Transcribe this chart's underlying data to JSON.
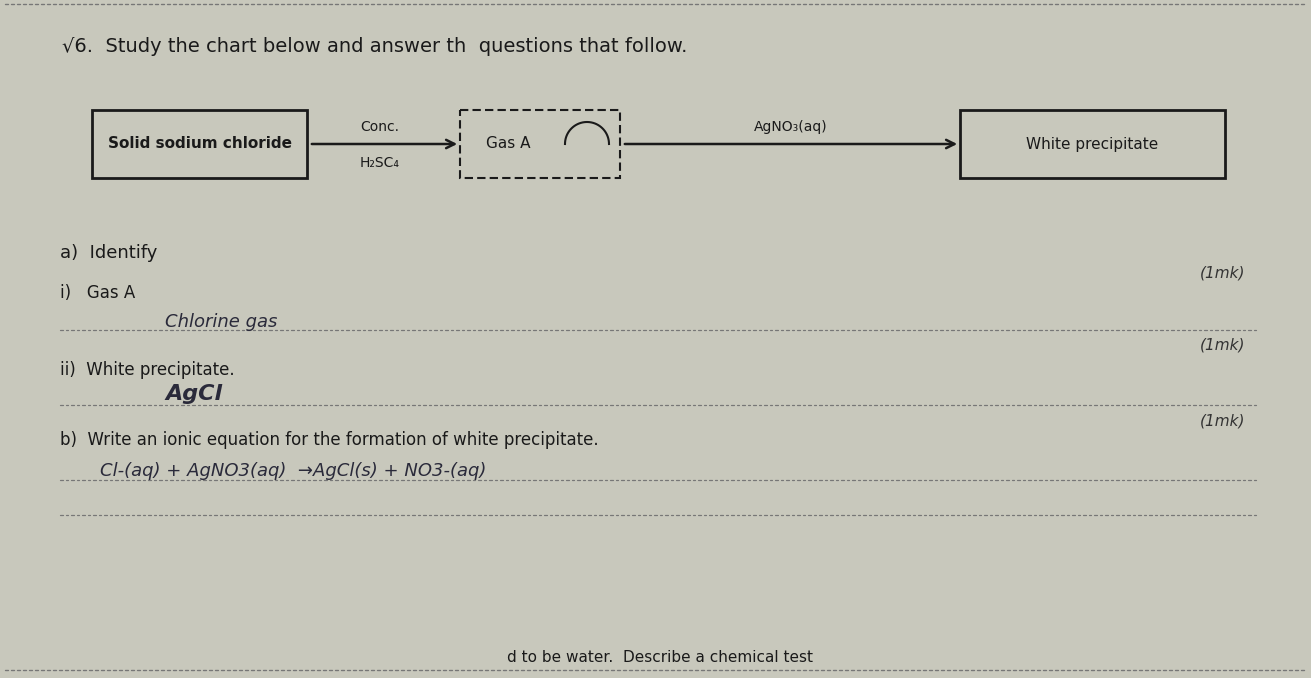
{
  "bg_color": "#c8c8bc",
  "paper_color": "#d8d6cc",
  "title_line": "√6.  Study the chart below and answer th  questions that follow.",
  "title_fontsize": 14,
  "box1_label": "Solid sodium chloride",
  "box2_label": "Gas A",
  "box3_label": "AgNO₃(aq)",
  "box4_label": "White precipitate",
  "arrow1_top": "Conc.",
  "arrow1_bot": "H₂SC₄",
  "section_a": "a)  Identify",
  "marks_a": "(1mk)",
  "item_i": "i)   Gas A",
  "answer_i": "Chlorine gas",
  "marks_i": "(1mk)",
  "item_ii": "ii)  White precipitate.",
  "answer_ii": "AgCl",
  "marks_ii": "(1mk)",
  "section_b": "b)  Write an ionic equation for the formation of white precipitate.",
  "answer_b": "Cl-(aq) + AgNO3(aq)  →AgCl(s) + NO3-(aq)",
  "footer": "d to be water.  Describe a chemical test",
  "dot_color": "#777777",
  "text_color": "#1a1a1a",
  "handwriting_color": "#2a2a3a",
  "box_edge_color": "#1a1a1a",
  "arrow_color": "#1a1a1a",
  "marks_color": "#333333"
}
